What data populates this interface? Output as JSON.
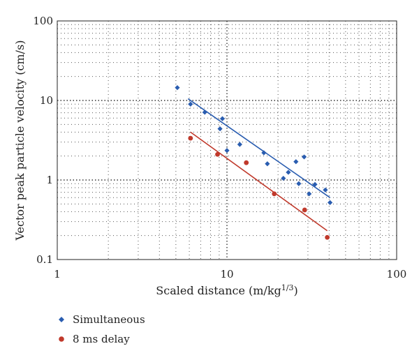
{
  "chart_data": {
    "type": "scatter",
    "title": "",
    "xlabel": "Scaled distance (m/kg",
    "xlabel_sup": "1/3",
    "xlabel_tail": ")",
    "ylabel": "Vector peak particle velocity (cm/s)",
    "x_scale": "log",
    "y_scale": "log",
    "xlim": [
      1,
      100
    ],
    "ylim": [
      0.1,
      100
    ],
    "x_ticks": [
      {
        "value": 1,
        "label": "1"
      },
      {
        "value": 10,
        "label": "10"
      },
      {
        "value": 100,
        "label": "100"
      }
    ],
    "y_ticks": [
      {
        "value": 0.1,
        "label": "0.1"
      },
      {
        "value": 1,
        "label": "1"
      },
      {
        "value": 10,
        "label": "10"
      },
      {
        "value": 100,
        "label": "100"
      }
    ],
    "grid": true,
    "legend_position": "bottom-left",
    "series": [
      {
        "name": "Simultaneous",
        "color": "#2a5db0",
        "marker": "diamond",
        "points": [
          [
            5.1,
            14.5
          ],
          [
            6.1,
            9.0
          ],
          [
            7.4,
            7.1
          ],
          [
            9.1,
            4.4
          ],
          [
            9.4,
            5.9
          ],
          [
            10.0,
            2.35
          ],
          [
            11.9,
            2.8
          ],
          [
            16.5,
            2.2
          ],
          [
            17.3,
            1.6
          ],
          [
            21.5,
            1.05
          ],
          [
            23.0,
            1.25
          ],
          [
            25.5,
            1.7
          ],
          [
            26.5,
            0.9
          ],
          [
            28.5,
            1.95
          ],
          [
            30.5,
            0.67
          ],
          [
            33.0,
            0.88
          ],
          [
            38.0,
            0.75
          ],
          [
            40.5,
            0.52
          ]
        ],
        "trendline": [
          [
            5.9,
            10.5
          ],
          [
            40.5,
            0.6
          ]
        ]
      },
      {
        "name": "8 ms delay",
        "color": "#c0392b",
        "marker": "circle",
        "points": [
          [
            6.1,
            3.35
          ],
          [
            8.8,
            2.1
          ],
          [
            13.0,
            1.65
          ],
          [
            19.0,
            0.67
          ],
          [
            28.7,
            0.42
          ],
          [
            39.0,
            0.19
          ]
        ],
        "trendline": [
          [
            6.1,
            4.0
          ],
          [
            39.0,
            0.23
          ]
        ]
      }
    ]
  }
}
